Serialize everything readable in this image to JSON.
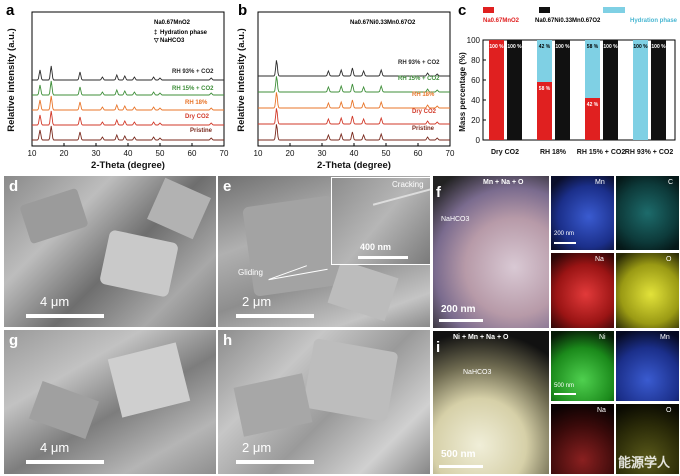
{
  "panel_labels": {
    "a": "a",
    "b": "b",
    "c": "c",
    "d": "d",
    "e": "e",
    "f": "f",
    "g": "g",
    "h": "h",
    "i": "i"
  },
  "chart_data": [
    {
      "type": "line",
      "panel": "a",
      "xlabel": "2-Theta (degree)",
      "ylabel": "Relative intensity (a.u.)",
      "xticks": [
        "10",
        "20",
        "30",
        "40",
        "50",
        "60",
        "70"
      ],
      "xlim": [
        10,
        70
      ],
      "title": "Na0.67MnO2",
      "legend": [
        {
          "symbol": "‡",
          "label": "Hydration phase"
        },
        {
          "symbol": "▽",
          "label": "NaHCO3"
        }
      ],
      "series": [
        {
          "name": "RH 93% + CO2",
          "color": "#2b2b2b"
        },
        {
          "name": "RH 15% + CO2",
          "color": "#3f8f3a"
        },
        {
          "name": "RH 18%",
          "color": "#e8752a"
        },
        {
          "name": "Dry CO2",
          "color": "#d23a2a"
        },
        {
          "name": "Pristine",
          "color": "#7a2a1e"
        }
      ]
    },
    {
      "type": "line",
      "panel": "b",
      "xlabel": "2-Theta (degree)",
      "ylabel": "Relative intensity (a.u.)",
      "xticks": [
        "10",
        "20",
        "30",
        "40",
        "50",
        "60",
        "70"
      ],
      "xlim": [
        10,
        70
      ],
      "title": "Na0.67Ni0.33Mn0.67O2",
      "series": [
        {
          "name": "RH 93% + CO2",
          "color": "#2b2b2b"
        },
        {
          "name": "RH 15% + CO2",
          "color": "#3f8f3a"
        },
        {
          "name": "RH 18%",
          "color": "#e8752a"
        },
        {
          "name": "Dry CO2",
          "color": "#d23a2a"
        },
        {
          "name": "Pristine",
          "color": "#7a2a1e"
        }
      ]
    },
    {
      "type": "bar",
      "panel": "c",
      "ylabel": "Mass percentage (%)",
      "ylim": [
        0,
        100
      ],
      "yticks": [
        "0",
        "20",
        "40",
        "60",
        "80",
        "100"
      ],
      "categories": [
        "Dry CO2",
        "RH 18%",
        "RH 15% + CO2",
        "RH 93% + CO2"
      ],
      "legend": [
        "Na0.67MnO2",
        "Na0.67Ni0.33Mn0.67O2",
        "Hydration phase"
      ],
      "colors": {
        "mno2": "#e02020",
        "ni": "#111111",
        "hyd": "#7fd0e4"
      },
      "bars": [
        {
          "cat": "Dry CO2",
          "mno2": 100,
          "hyd": 0,
          "mno2_label": "100 %",
          "ni": 100,
          "ni_label": "100 %"
        },
        {
          "cat": "RH 18%",
          "mno2": 58,
          "hyd": 42,
          "mno2_label": "58 %",
          "hyd_label": "42 %",
          "ni": 100,
          "ni_label": "100 %"
        },
        {
          "cat": "RH 15% + CO2",
          "mno2": 42,
          "hyd": 58,
          "mno2_label": "42 %",
          "hyd_label": "58 %",
          "ni": 100,
          "ni_label": "100 %"
        },
        {
          "cat": "RH 93% + CO2",
          "mno2": 0,
          "hyd": 100,
          "hyd_label": "100 %",
          "ni": 100,
          "ni_label": "100 %"
        }
      ]
    }
  ],
  "sem": {
    "d_scale": "4 μm",
    "e_scale": "2 μm",
    "e_inset_scale": "400 nm",
    "e_cracking": "Cracking",
    "e_gliding": "Gliding",
    "g_scale": "4 μm",
    "h_scale": "2 μm"
  },
  "eds": {
    "f_title": "Mn + Na + O",
    "f_nahco3": "NaHCO3",
    "f_scale": "200 nm",
    "f_small_scale": "200 nm",
    "f_maps": [
      "Mn",
      "C",
      "Na",
      "O"
    ],
    "i_title": "Ni + Mn + Na + O",
    "i_nahco3": "NaHCO3",
    "i_scale": "500 nm",
    "i_small_scale": "500 nm",
    "i_maps": [
      "Ni",
      "Mn",
      "Na",
      "O"
    ]
  },
  "watermark": "能源学人"
}
